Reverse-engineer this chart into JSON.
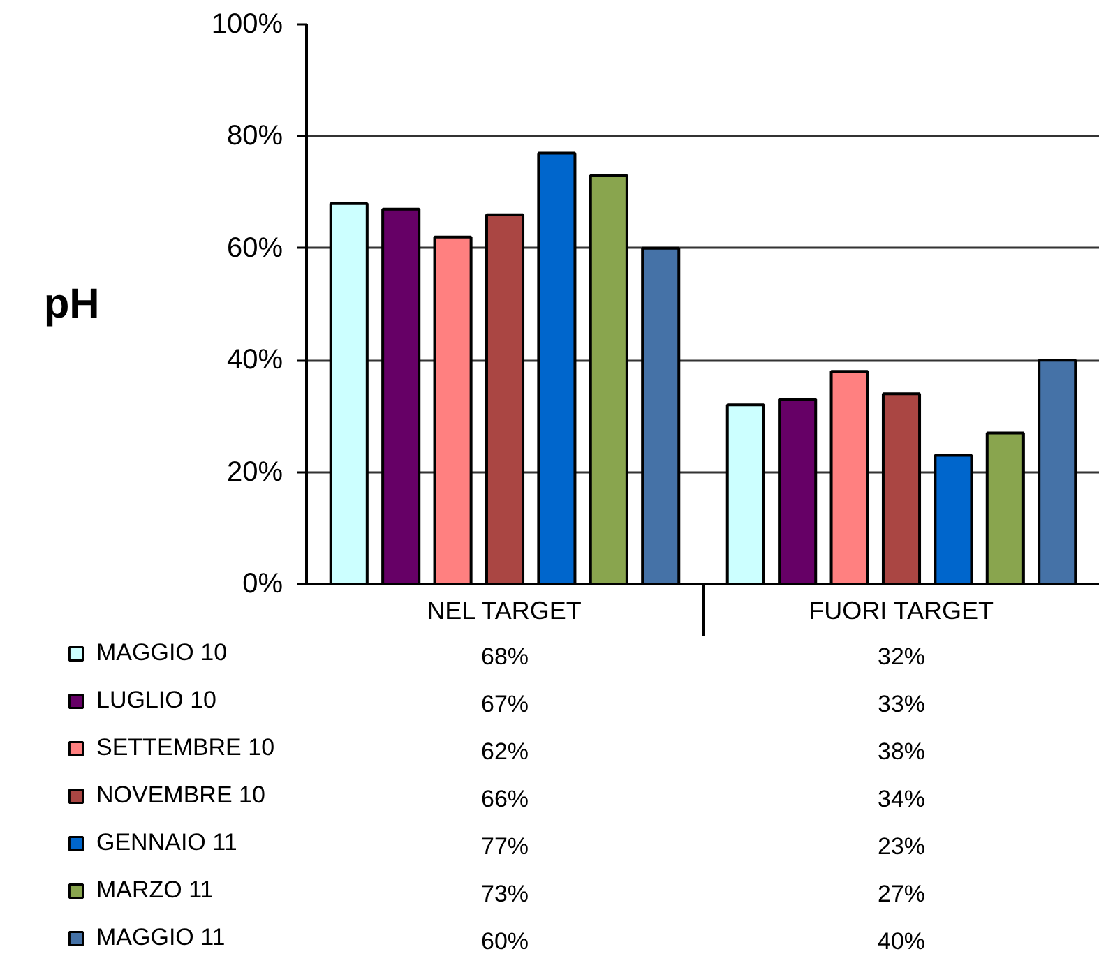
{
  "chart_data": {
    "type": "bar",
    "ylabel": "pH",
    "categories": [
      "NEL TARGET",
      "FUORI TARGET"
    ],
    "series": [
      {
        "name": "MAGGIO 10",
        "color": "#ccffff",
        "values": [
          68,
          32
        ],
        "value_labels": [
          "68%",
          "32%"
        ]
      },
      {
        "name": "LUGLIO 10",
        "color": "#660066",
        "values": [
          67,
          33
        ],
        "value_labels": [
          "67%",
          "33%"
        ]
      },
      {
        "name": "SETTEMBRE 10",
        "color": "#ff8080",
        "values": [
          62,
          38
        ],
        "value_labels": [
          "62%",
          "38%"
        ]
      },
      {
        "name": "NOVEMBRE 10",
        "color": "#aa4643",
        "values": [
          66,
          34
        ],
        "value_labels": [
          "66%",
          "34%"
        ]
      },
      {
        "name": "GENNAIO 11",
        "color": "#0066cc",
        "values": [
          77,
          23
        ],
        "value_labels": [
          "77%",
          "23%"
        ]
      },
      {
        "name": "MARZO 11",
        "color": "#89a54e",
        "values": [
          73,
          27
        ],
        "value_labels": [
          "73%",
          "27%"
        ]
      },
      {
        "name": "MAGGIO 11",
        "color": "#4572a7",
        "values": [
          60,
          40
        ],
        "value_labels": [
          "60%",
          "40%"
        ]
      }
    ],
    "ylim": [
      0,
      100
    ],
    "yticks": [
      {
        "value": 0,
        "label": "0%"
      },
      {
        "value": 20,
        "label": "20%"
      },
      {
        "value": 40,
        "label": "40%"
      },
      {
        "value": 60,
        "label": "60%"
      },
      {
        "value": 80,
        "label": "80%"
      },
      {
        "value": 100,
        "label": "100%"
      }
    ],
    "grid": "y",
    "legend": "bottom left"
  }
}
